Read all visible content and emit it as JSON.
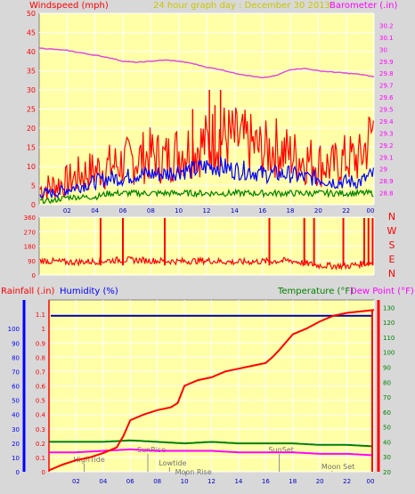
{
  "header": {
    "left_title": "Windspeed (mph)",
    "center_title": "24 hour graph day : December 30 2013",
    "right_title": "Barometer (.in)"
  },
  "colors": {
    "background": "#d8d8d8",
    "plot_bg": "#ffffa8",
    "grid": "#ffffff",
    "barometer": "#e040e0",
    "wind_gust": "#ff0000",
    "wind_avg": "#0000ff",
    "wind_low": "#008000",
    "direction": "#ff0000",
    "rain": "#ff0000",
    "humidity": "#000090",
    "temperature": "#008000",
    "dew_point": "#ff00ff",
    "axis_left_top": "#ff0000",
    "axis_right_top": "#ff00ff",
    "axis_left_bottom_rain": "#ff0000",
    "axis_left_bottom_humidity": "#0000ff",
    "axis_right_bottom": "#ff0000",
    "center_title": "#c8c800"
  },
  "chart_data": [
    {
      "type": "line",
      "panel": "wind_barometer",
      "title": "",
      "x_ticks": [
        "02",
        "04",
        "06",
        "08",
        "10",
        "12",
        "14",
        "16",
        "18",
        "20",
        "22",
        "00"
      ],
      "x_range_hours": [
        0,
        24
      ],
      "y_left": {
        "label": "Windspeed (mph)",
        "range": [
          0,
          50
        ],
        "ticks": [
          0,
          5,
          10,
          15,
          20,
          25,
          30,
          35,
          40,
          45,
          50
        ]
      },
      "y_right": {
        "label": "Barometer (.in)",
        "range": [
          28.7,
          30.3
        ],
        "ticks": [
          "28.8",
          "28.9",
          "29",
          "29.1",
          "29.2",
          "29.3",
          "29.4",
          "29.5",
          "29.6",
          "29.7",
          "29.8",
          "29.9",
          "30",
          "30.1",
          "30.2"
        ]
      },
      "series": [
        {
          "name": "Barometer",
          "axis": "right",
          "x": [
            0,
            1,
            2,
            3,
            4,
            5,
            6,
            7,
            8,
            9,
            10,
            11,
            12,
            13,
            14,
            15,
            16,
            17,
            18,
            19,
            20,
            21,
            22,
            23,
            24
          ],
          "values": [
            30.01,
            30.0,
            29.99,
            29.97,
            29.95,
            29.93,
            29.9,
            29.89,
            29.9,
            29.91,
            29.9,
            29.88,
            29.85,
            29.83,
            29.8,
            29.78,
            29.76,
            29.78,
            29.83,
            29.84,
            29.82,
            29.81,
            29.8,
            29.79,
            29.77
          ]
        },
        {
          "name": "Windspeed gust",
          "axis": "left",
          "x": [
            0,
            1,
            2,
            3,
            4,
            5,
            6,
            7,
            8,
            9,
            10,
            11,
            12,
            13,
            14,
            15,
            16,
            17,
            18,
            19,
            20,
            21,
            22,
            23,
            24
          ],
          "values": [
            4,
            5,
            6,
            8,
            9,
            10,
            11,
            12,
            13,
            12,
            14,
            15,
            16,
            18,
            17,
            16,
            14,
            15,
            13,
            12,
            11,
            10,
            12,
            12,
            20
          ],
          "peaks": [
            {
              "x": 12.2,
              "y": 30
            },
            {
              "x": 13.0,
              "y": 30
            },
            {
              "x": 12.6,
              "y": 26
            },
            {
              "x": 11.0,
              "y": 25
            }
          ]
        },
        {
          "name": "Windspeed average",
          "axis": "left",
          "x": [
            0,
            1,
            2,
            3,
            4,
            5,
            6,
            7,
            8,
            9,
            10,
            11,
            12,
            13,
            14,
            15,
            16,
            17,
            18,
            19,
            20,
            21,
            22,
            23,
            24
          ],
          "values": [
            3,
            3,
            4,
            5,
            6,
            7,
            7,
            8,
            8,
            8,
            9,
            9,
            10,
            10,
            9,
            9,
            8,
            8,
            8,
            7,
            7,
            6,
            6,
            6,
            8
          ]
        },
        {
          "name": "Windspeed low",
          "axis": "left",
          "x": [
            0,
            1,
            2,
            3,
            4,
            5,
            6,
            7,
            8,
            9,
            10,
            11,
            12,
            13,
            14,
            15,
            16,
            17,
            18,
            19,
            20,
            21,
            22,
            23,
            24
          ],
          "values": [
            1,
            1,
            2,
            2,
            2,
            3,
            3,
            3,
            3,
            3,
            3,
            3,
            3,
            3,
            3,
            3,
            3,
            3,
            3,
            3,
            3,
            3,
            3,
            3,
            3
          ]
        }
      ]
    },
    {
      "type": "line",
      "panel": "wind_direction",
      "x_range_hours": [
        0,
        24
      ],
      "y_left": {
        "range": [
          0,
          360
        ],
        "ticks": [
          0,
          90,
          180,
          270,
          360
        ]
      },
      "compass_labels": [
        "N",
        "W",
        "S",
        "E",
        "N"
      ],
      "series": [
        {
          "name": "Wind direction",
          "x": [
            0,
            2,
            4,
            6,
            8,
            10,
            12,
            14,
            16,
            18,
            20,
            22,
            24
          ],
          "values": [
            90,
            80,
            85,
            95,
            90,
            85,
            90,
            80,
            85,
            90,
            60,
            55,
            80
          ],
          "spikes_to_360": [
            4.4,
            6.0,
            9.0,
            16.5,
            19.0,
            19.7,
            21.8,
            23.3,
            23.6,
            23.9
          ]
        }
      ]
    },
    {
      "type": "line",
      "panel": "rain_humidity_temperature",
      "x_range_hours": [
        0,
        24
      ],
      "y_left": {
        "label_rain": "Rainfall (.in)",
        "label_humidity": "Humidity (%)",
        "range": [
          0,
          1.2
        ],
        "ticks": [
          "0",
          "0.1",
          "0.2",
          "0.3",
          "0.4",
          "0.5",
          "0.6",
          "0.7",
          "0.8",
          "0.9",
          "1",
          "1.1"
        ],
        "humidity_ticks": [
          0,
          10,
          20,
          30,
          40,
          50,
          60,
          70,
          80,
          90,
          100
        ]
      },
      "y_right": {
        "label_temperature": "Temperature (°F)",
        "label_dew": "Dew Point (°F)",
        "range": [
          20,
          135
        ],
        "ticks": [
          20,
          30,
          40,
          50,
          60,
          70,
          80,
          90,
          100,
          110,
          120,
          130
        ]
      },
      "series": [
        {
          "name": "Rainfall",
          "axis": "left",
          "x": [
            0,
            1,
            2,
            3,
            4,
            5,
            5.5,
            6,
            7,
            8,
            9,
            9.5,
            10,
            11,
            12,
            13,
            14,
            15,
            16,
            16.5,
            17,
            18,
            19,
            20,
            21,
            22,
            23,
            24
          ],
          "values": [
            0.01,
            0.05,
            0.08,
            0.1,
            0.13,
            0.17,
            0.25,
            0.36,
            0.4,
            0.43,
            0.45,
            0.48,
            0.6,
            0.64,
            0.66,
            0.7,
            0.72,
            0.74,
            0.76,
            0.8,
            0.85,
            0.96,
            1.0,
            1.05,
            1.09,
            1.11,
            1.12,
            1.13
          ]
        },
        {
          "name": "Humidity",
          "axis": "left",
          "x": [
            0,
            24
          ],
          "values": [
            1.09,
            1.09
          ]
        },
        {
          "name": "Temperature",
          "axis": "right",
          "x": [
            0,
            2,
            4,
            6,
            8,
            10,
            12,
            14,
            16,
            18,
            20,
            22,
            24
          ],
          "values": [
            40,
            40,
            40,
            41,
            40,
            39,
            40,
            39,
            39,
            39,
            38,
            38,
            37
          ]
        },
        {
          "name": "Dew Point",
          "axis": "right",
          "x": [
            0,
            2,
            4,
            6,
            8,
            10,
            12,
            14,
            16,
            18,
            20,
            22,
            24
          ],
          "values": [
            33,
            33,
            34,
            35,
            34,
            34,
            34,
            33,
            33,
            33,
            32,
            32,
            31
          ]
        }
      ],
      "annotations": [
        {
          "label": "HighTide",
          "x": 2.6
        },
        {
          "label": "SunRise",
          "x": 7.3
        },
        {
          "label": "Lowtide",
          "x": 8.9
        },
        {
          "label": "Moon Rise",
          "x": 10.1
        },
        {
          "label": "SunSet",
          "x": 17.0
        },
        {
          "label": "Moon Set",
          "x": 20.9
        }
      ],
      "x_ticks": [
        "02",
        "04",
        "06",
        "08",
        "10",
        "12",
        "14",
        "16",
        "18",
        "20",
        "22",
        "00"
      ]
    }
  ]
}
